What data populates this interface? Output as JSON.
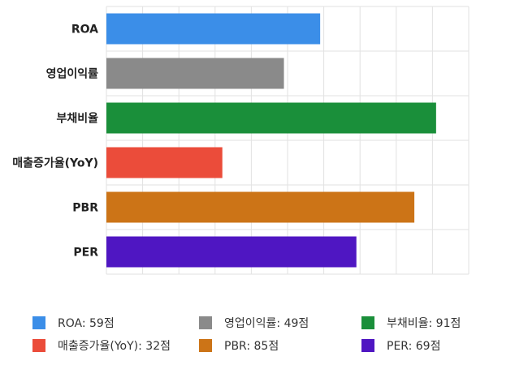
{
  "chart_data": {
    "type": "bar",
    "orientation": "horizontal",
    "categories": [
      "ROA",
      "영업이익률",
      "부채비율",
      "매출증가율(YoY)",
      "PBR",
      "PER"
    ],
    "values": [
      59,
      49,
      91,
      32,
      85,
      69
    ],
    "colors": [
      "#3b8ee8",
      "#8a8a8a",
      "#1a8f3a",
      "#eb4c3a",
      "#cc7417",
      "#4f16c2"
    ],
    "xlim": [
      0,
      100
    ],
    "xticks": [
      0,
      10,
      20,
      30,
      40,
      50,
      60,
      70,
      80,
      90,
      100
    ],
    "tick_suffix": "점",
    "grid": true,
    "legend_position": "bottom",
    "legend": [
      {
        "label": "ROA: 59점",
        "color": "#3b8ee8"
      },
      {
        "label": "영업이익률: 49점",
        "color": "#8a8a8a"
      },
      {
        "label": "부채비율: 91점",
        "color": "#1a8f3a"
      },
      {
        "label": "매출증가율(YoY): 32점",
        "color": "#eb4c3a"
      },
      {
        "label": "PBR: 85점",
        "color": "#cc7417"
      },
      {
        "label": "PER: 69점",
        "color": "#4f16c2"
      }
    ]
  }
}
